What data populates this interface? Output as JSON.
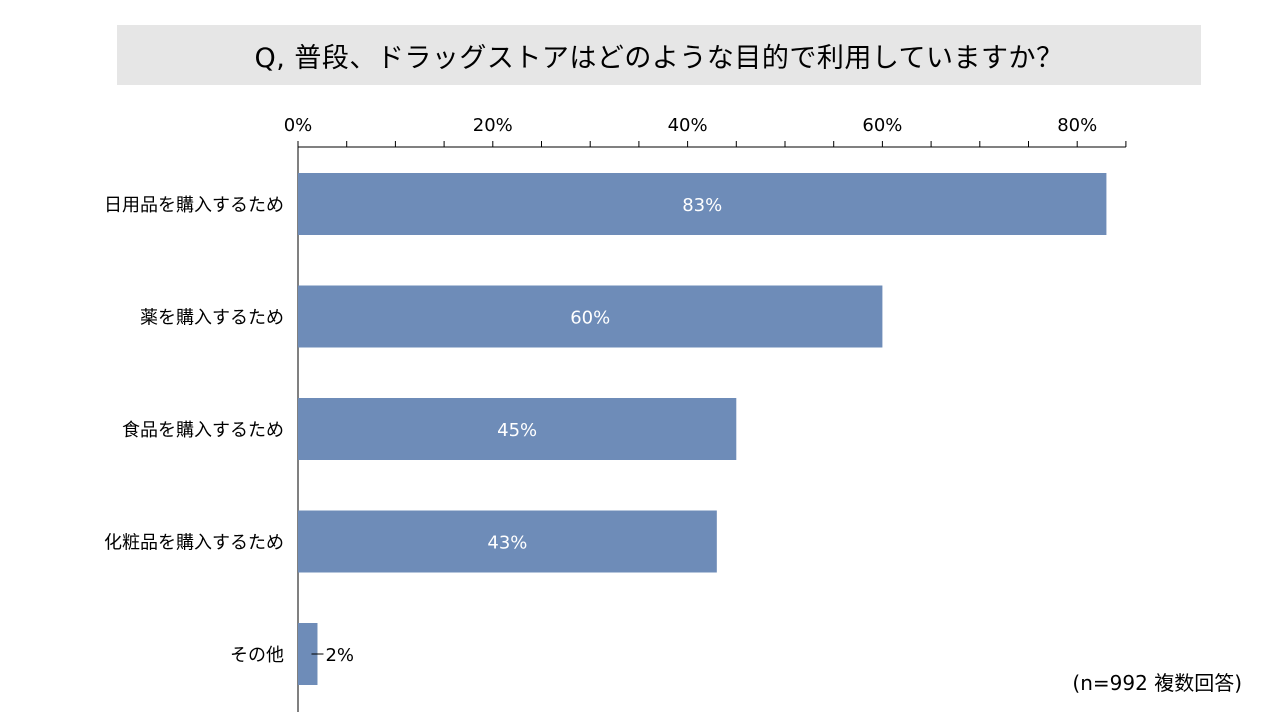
{
  "title": "Q, 普段、ドラッグストアはどのような目的で利用していますか？",
  "note": "(n=992 複数回答)",
  "chart_data": {
    "type": "bar",
    "orientation": "horizontal",
    "categories": [
      "日用品を購入するため",
      "薬を購入するため",
      "食品を購入するため",
      "化粧品を購入するため",
      "その他"
    ],
    "values": [
      83,
      60,
      45,
      43,
      2
    ],
    "data_labels": [
      "83%",
      "60%",
      "45%",
      "43%",
      "2%"
    ],
    "x_ticks": [
      0,
      20,
      40,
      60,
      80
    ],
    "x_tick_labels": [
      "0%",
      "20%",
      "40%",
      "60%",
      "80%"
    ],
    "xlim": [
      0,
      85
    ],
    "x_axis_position": "top",
    "grid": false,
    "bar_color": "#6e8cb8",
    "data_label_color_inside": "#ffffff",
    "data_label_color_outside": "#000000"
  }
}
